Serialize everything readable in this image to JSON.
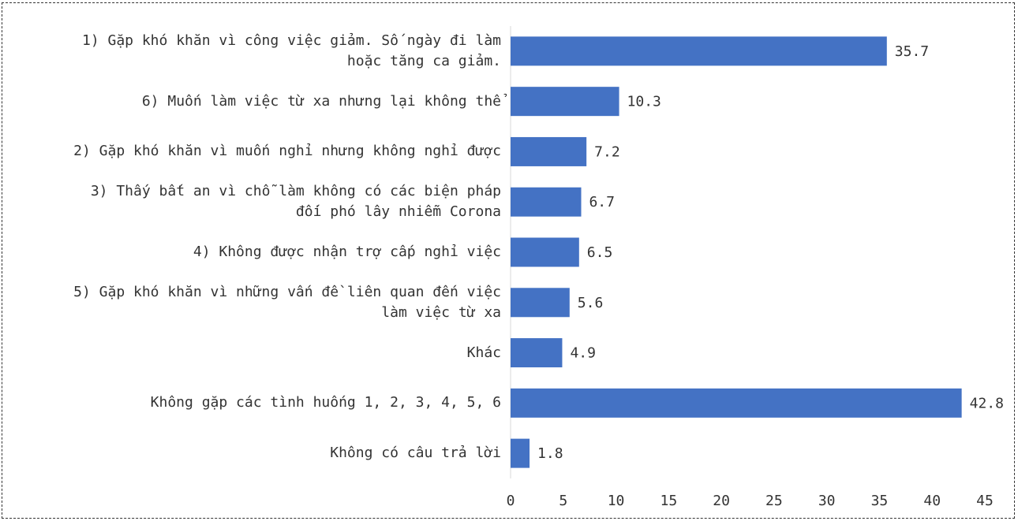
{
  "chart_data": {
    "type": "bar",
    "orientation": "horizontal",
    "categories": [
      "1) Gặp khó khăn vì công việc giảm. Số ngày đi làm\nhoặc tăng ca giảm.",
      "6) Muốn làm việc từ xa nhưng lại không thể",
      "2) Gặp khó khăn vì muốn nghỉ nhưng không nghỉ được",
      "3) Thấy bất an vì chỗ làm không có các biện pháp\nđối phó lây nhiễm Corona",
      "4) Không được nhận trợ cấp nghỉ việc",
      "5) Gặp khó khăn vì những vấn đề liên quan đến việc\nlàm việc từ xa",
      "Khác",
      "Không gặp các tình huống 1, 2, 3, 4, 5, 6",
      "Không có câu trả lời"
    ],
    "values": [
      35.7,
      10.3,
      7.2,
      6.7,
      6.5,
      5.6,
      4.9,
      42.8,
      1.8
    ],
    "color": "#4472c4",
    "xlim": [
      0,
      45
    ],
    "xticks": [
      0,
      5,
      10,
      15,
      20,
      25,
      30,
      35,
      40,
      45
    ],
    "grid": false
  }
}
